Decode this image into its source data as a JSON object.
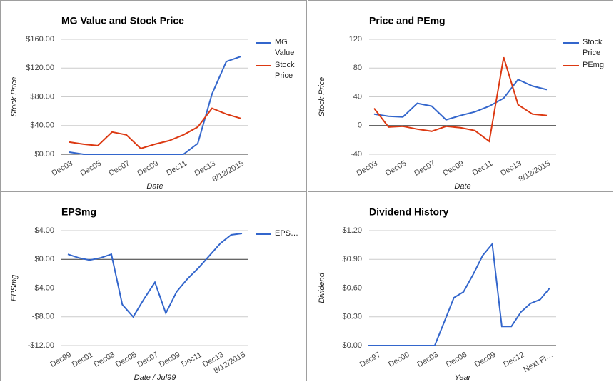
{
  "chart_data": [
    {
      "type": "line",
      "title": "MG Value and Stock Price",
      "xlabel": "Date",
      "ylabel": "Stock Price",
      "categories": [
        "Dec03",
        null,
        "Dec05",
        null,
        "Dec07",
        null,
        "Dec09",
        null,
        "Dec11",
        null,
        "Dec13",
        null,
        "8/12/2015"
      ],
      "series": [
        {
          "name": "MG Value",
          "color": "#3366cc",
          "values": [
            3,
            0,
            0,
            0,
            0,
            0,
            0,
            0,
            0,
            15,
            84,
            129,
            136
          ]
        },
        {
          "name": "Stock Price",
          "color": "#dc3912",
          "values": [
            17,
            14,
            12,
            31,
            27,
            8,
            14,
            19,
            27,
            38,
            64,
            56,
            50
          ]
        }
      ],
      "ylim": [
        0,
        160
      ],
      "yticks": [
        {
          "value": 0,
          "label": "$0.00"
        },
        {
          "value": 40,
          "label": "$40.00"
        },
        {
          "value": 80,
          "label": "$80.00"
        },
        {
          "value": 120,
          "label": "$120.00"
        },
        {
          "value": 160,
          "label": "$160.00"
        }
      ],
      "grid": true,
      "legend": "right"
    },
    {
      "type": "line",
      "title": "Price and PEmg",
      "xlabel": "Date",
      "ylabel": "Stock Price",
      "categories": [
        "Dec03",
        null,
        "Dec05",
        null,
        "Dec07",
        null,
        "Dec09",
        null,
        "Dec11",
        null,
        "Dec13",
        null,
        "8/12/2015"
      ],
      "series": [
        {
          "name": "Stock Price",
          "color": "#3366cc",
          "values": [
            16,
            13,
            12,
            31,
            27,
            8,
            14,
            19,
            27,
            38,
            64,
            55,
            50
          ]
        },
        {
          "name": "PEmg",
          "color": "#dc3912",
          "values": [
            24,
            -2,
            -1,
            -5,
            -8,
            -1,
            -3,
            -7,
            -22,
            95,
            29,
            16,
            14
          ]
        }
      ],
      "ylim": [
        -40,
        120
      ],
      "yticks": [
        -40,
        0,
        40,
        80,
        120
      ],
      "grid": true,
      "legend": "right"
    },
    {
      "type": "line",
      "title": "EPSmg",
      "xlabel": "Date / Jul99",
      "ylabel": "EPSmg",
      "categories": [
        "Dec99",
        null,
        "Dec01",
        null,
        "Dec03",
        null,
        "Dec05",
        null,
        "Dec07",
        null,
        "Dec09",
        null,
        "Dec11",
        null,
        "Dec13",
        null,
        "8/12/2015"
      ],
      "series": [
        {
          "name": "EPS…",
          "color": "#3366cc",
          "values": [
            0.7,
            0.2,
            -0.1,
            0.2,
            0.7,
            -6.3,
            -8,
            -5.5,
            -3.2,
            -7.5,
            -4.5,
            -2.7,
            -1.2,
            0.5,
            2.2,
            3.4,
            3.6
          ]
        }
      ],
      "ylim": [
        -12,
        4
      ],
      "yticks": [
        {
          "value": -12,
          "label": "-$12.00"
        },
        {
          "value": -8,
          "label": "-$8.00"
        },
        {
          "value": -4,
          "label": "-$4.00"
        },
        {
          "value": 0,
          "label": "$0.00"
        },
        {
          "value": 4,
          "label": "$4.00"
        }
      ],
      "grid": true,
      "legend": "right"
    },
    {
      "type": "line",
      "title": "Dividend History",
      "xlabel": "Year",
      "ylabel": "Dividend",
      "categories": [
        null,
        "Dec97",
        null,
        null,
        "Dec00",
        null,
        null,
        "Dec03",
        null,
        null,
        "Dec06",
        null,
        null,
        "Dec09",
        null,
        null,
        "Dec12",
        null,
        null,
        "Next Fi…"
      ],
      "series": [
        {
          "color": "#3366cc",
          "values": [
            0,
            0,
            0,
            0,
            0,
            0,
            0,
            0,
            0.25,
            0.5,
            0.56,
            0.74,
            0.94,
            1.06,
            0.2,
            0.2,
            0.35,
            0.44,
            0.48,
            0.6
          ]
        }
      ],
      "ylim": [
        0,
        1.2
      ],
      "yticks": [
        {
          "value": 0,
          "label": "$0.00"
        },
        {
          "value": 0.3,
          "label": "$0.30"
        },
        {
          "value": 0.6,
          "label": "$0.60"
        },
        {
          "value": 0.9,
          "label": "$0.90"
        },
        {
          "value": 1.2,
          "label": "$1.20"
        }
      ],
      "grid": true,
      "legend": "none"
    }
  ]
}
